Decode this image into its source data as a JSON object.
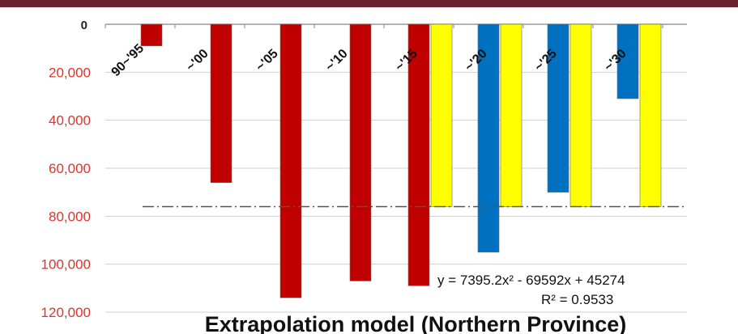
{
  "chart_data": {
    "type": "bar",
    "title": "Extrapolation model (Northern Province)",
    "xlabel": "",
    "ylabel": "",
    "ylim": [
      0,
      120000
    ],
    "y_inverted": true,
    "y_ticks": [
      "0",
      "20,000",
      "40,000",
      "60,000",
      "80,000",
      "100,000",
      "120,000"
    ],
    "grid": true,
    "legend": "none",
    "categories": [
      "90~'95",
      "~'00",
      "~'05",
      "~'10",
      "~'15",
      "~'20",
      "~'25",
      "~'30"
    ],
    "series": [
      {
        "color": "#c00000",
        "values": [
          9000,
          66000,
          114000,
          107000,
          109000,
          null,
          null,
          null
        ]
      },
      {
        "color": "#0070c0",
        "values": [
          null,
          null,
          null,
          null,
          null,
          95000,
          70000,
          31000
        ]
      },
      {
        "color": "#ffff00",
        "values": [
          null,
          null,
          null,
          null,
          76000,
          76000,
          76000,
          76000
        ]
      }
    ],
    "reference_line": {
      "value": 76000,
      "style": "dash-dot"
    },
    "trendline": {
      "type": "polynomial",
      "coefficients": [
        7395.2,
        -69592,
        45274
      ],
      "equation": "y = 7395.2x² - 69592x + 45274",
      "r_squared": "R² = 0.9533"
    }
  }
}
